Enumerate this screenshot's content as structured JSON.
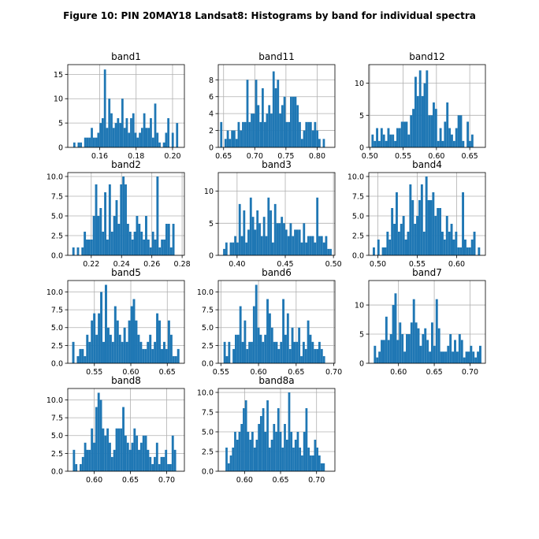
{
  "title": "Figure 10: PIN 20MAY18  Landsat8: Histograms by band for individual spectra",
  "bar_color": "#1f77b4",
  "chart_data": [
    {
      "type": "bar",
      "title": "band1",
      "grid": true,
      "xlim": [
        0.1425,
        0.2065
      ],
      "ylim": [
        0,
        17
      ],
      "xticks": [
        0.16,
        0.18,
        0.2
      ],
      "xtick_labels": [
        "0.16",
        "0.18",
        "0.20"
      ],
      "yticks": [
        0,
        5,
        10,
        15
      ],
      "ytick_labels": [
        "0",
        "5",
        "10",
        "15"
      ],
      "bin_start": 0.1455,
      "bin_width": 0.0012,
      "values": [
        1,
        0,
        1,
        1,
        0,
        2,
        2,
        2,
        4,
        2,
        2,
        3,
        5,
        6,
        16,
        4,
        10,
        7,
        4,
        5,
        6,
        5,
        10,
        4,
        6,
        3,
        6,
        7,
        3,
        2,
        3,
        4,
        7,
        4,
        4,
        6,
        2,
        9,
        3,
        1,
        0,
        1,
        3,
        6,
        0,
        3,
        0,
        5
      ]
    },
    {
      "type": "bar",
      "title": "band11",
      "grid": true,
      "xlim": [
        0.6415,
        0.8285
      ],
      "ylim": [
        0,
        9.8
      ],
      "xticks": [
        0.65,
        0.7,
        0.75,
        0.8
      ],
      "xtick_labels": [
        "0.65",
        "0.70",
        "0.75",
        "0.80"
      ],
      "yticks": [
        0,
        2,
        4,
        6,
        8
      ],
      "ytick_labels": [
        "0",
        "2",
        "4",
        "6",
        "8"
      ],
      "bin_start": 0.6445,
      "bin_width": 0.0035,
      "values": [
        3,
        0,
        1,
        2,
        1,
        2,
        2,
        1,
        3,
        2,
        3,
        3,
        8,
        3,
        4,
        4,
        8,
        5,
        3,
        7,
        3,
        4,
        5,
        4,
        9,
        7,
        8,
        4,
        5,
        6,
        3,
        3,
        6,
        6,
        6,
        5,
        3,
        1,
        2,
        3,
        3,
        3,
        2,
        3,
        2,
        1,
        0,
        1
      ]
    },
    {
      "type": "bar",
      "title": "band12",
      "grid": true,
      "xlim": [
        0.4985,
        0.6735
      ],
      "ylim": [
        0,
        12.9
      ],
      "xticks": [
        0.5,
        0.55,
        0.6,
        0.65
      ],
      "xtick_labels": [
        "0.50",
        "0.55",
        "0.60",
        "0.65"
      ],
      "yticks": [
        0,
        5,
        10
      ],
      "ytick_labels": [
        "0",
        "5",
        "10"
      ],
      "bin_start": 0.5025,
      "bin_width": 0.0034,
      "values": [
        2,
        1,
        3,
        1,
        3,
        2,
        1,
        3,
        2,
        2,
        1,
        3,
        3,
        4,
        4,
        4,
        2,
        5,
        6,
        11,
        8,
        12,
        8,
        10,
        12,
        5,
        5,
        7,
        6,
        1,
        3,
        1,
        4,
        7,
        3,
        2,
        1,
        3,
        5,
        5,
        1,
        0,
        4,
        1,
        2
      ]
    },
    {
      "type": "bar",
      "title": "band2",
      "grid": true,
      "xlim": [
        0.2045,
        0.2815
      ],
      "ylim": [
        0,
        10.5
      ],
      "xticks": [
        0.22,
        0.24,
        0.26,
        0.28
      ],
      "xtick_labels": [
        "0.22",
        "0.24",
        "0.26",
        "0.28"
      ],
      "yticks": [
        0,
        2.5,
        5,
        7.5,
        10
      ],
      "ytick_labels": [
        "0.0",
        "2.5",
        "5.0",
        "7.5",
        "10.0"
      ],
      "bin_start": 0.2075,
      "bin_width": 0.0015,
      "values": [
        1,
        0,
        1,
        0,
        1,
        3,
        2,
        2,
        2,
        5,
        9,
        5,
        6,
        3,
        8,
        2,
        9,
        3,
        5,
        7,
        4,
        9,
        10,
        9,
        4,
        3,
        2,
        3,
        5,
        4,
        3,
        2,
        5,
        2,
        1,
        3,
        2,
        10,
        1,
        2,
        2,
        4,
        4,
        1,
        4
      ]
    },
    {
      "type": "bar",
      "title": "band3",
      "grid": true,
      "xlim": [
        0.3805,
        0.5015
      ],
      "ylim": [
        0,
        12.9
      ],
      "xticks": [
        0.4,
        0.45,
        0.5
      ],
      "xtick_labels": [
        "0.40",
        "0.45",
        "0.50"
      ],
      "yticks": [
        0,
        5,
        10
      ],
      "ytick_labels": [
        "0",
        "5",
        "10"
      ],
      "bin_start": 0.3855,
      "bin_width": 0.0023,
      "values": [
        1,
        2,
        0,
        2,
        2,
        3,
        2,
        8,
        3,
        7,
        2,
        4,
        9,
        6,
        4,
        7,
        5,
        3,
        6,
        3,
        9,
        7,
        2,
        8,
        5,
        5,
        6,
        5,
        4,
        3,
        5,
        3,
        4,
        4,
        4,
        2,
        5,
        2,
        3,
        3,
        3,
        2,
        9,
        3,
        3,
        2,
        3,
        1,
        1
      ]
    },
    {
      "type": "bar",
      "title": "band4",
      "grid": true,
      "xlim": [
        0.4885,
        0.6365
      ],
      "ylim": [
        0,
        10.5
      ],
      "xticks": [
        0.5,
        0.55,
        0.6
      ],
      "xtick_labels": [
        "0.50",
        "0.55",
        "0.60"
      ],
      "yticks": [
        0,
        2.5,
        5,
        7.5,
        10
      ],
      "ytick_labels": [
        "0.0",
        "2.5",
        "5.0",
        "7.5",
        "10.0"
      ],
      "bin_start": 0.4935,
      "bin_width": 0.0029,
      "values": [
        1,
        0,
        2,
        0,
        1,
        1,
        3,
        2,
        6,
        4,
        8,
        3,
        4,
        5,
        2,
        3,
        9,
        7,
        4,
        5,
        7,
        9,
        3,
        10,
        7,
        7,
        8,
        5,
        6,
        6,
        3,
        2,
        5,
        3,
        4,
        2,
        3,
        1,
        1,
        8,
        2,
        1,
        1,
        2,
        3,
        0,
        1
      ]
    },
    {
      "type": "bar",
      "title": "band5",
      "grid": true,
      "xlim": [
        0.5135,
        0.6735
      ],
      "ylim": [
        0,
        11.6
      ],
      "xticks": [
        0.55,
        0.6,
        0.65
      ],
      "xtick_labels": [
        "0.55",
        "0.60",
        "0.65"
      ],
      "yticks": [
        0,
        2.5,
        5,
        7.5,
        10
      ],
      "ytick_labels": [
        "0.0",
        "2.5",
        "5.0",
        "7.5",
        "10.0"
      ],
      "bin_start": 0.5195,
      "bin_width": 0.0032,
      "values": [
        3,
        0,
        1,
        2,
        2,
        1,
        4,
        3,
        6,
        7,
        4,
        7,
        10,
        3,
        11,
        5,
        4,
        3,
        8,
        6,
        4,
        3,
        5,
        3,
        6,
        8,
        9,
        6,
        4,
        3,
        2,
        2,
        3,
        4,
        2,
        3,
        7,
        6,
        2,
        3,
        2,
        6,
        4,
        1,
        1,
        2
      ]
    },
    {
      "type": "bar",
      "title": "band6",
      "grid": true,
      "xlim": [
        0.5465,
        0.7015
      ],
      "ylim": [
        0,
        11.6
      ],
      "xticks": [
        0.55,
        0.6,
        0.65,
        0.7
      ],
      "xtick_labels": [
        "0.55",
        "0.60",
        "0.65",
        "0.70"
      ],
      "yticks": [
        0,
        2.5,
        5,
        7.5,
        10
      ],
      "ytick_labels": [
        "0.0",
        "2.5",
        "5.0",
        "7.5",
        "10.0"
      ],
      "bin_start": 0.5505,
      "bin_width": 0.003,
      "values": [
        0,
        3,
        1,
        3,
        0,
        2,
        4,
        4,
        8,
        3,
        6,
        2,
        3,
        3,
        8,
        11,
        5,
        4,
        3,
        4,
        9,
        7,
        5,
        3,
        3,
        2,
        3,
        9,
        4,
        7,
        2,
        5,
        3,
        3,
        5,
        1,
        3,
        2,
        6,
        4,
        3,
        2,
        2,
        3,
        2,
        1
      ]
    },
    {
      "type": "bar",
      "title": "band7",
      "grid": true,
      "xlim": [
        0.5585,
        0.7215
      ],
      "ylim": [
        0,
        14.2
      ],
      "xticks": [
        0.6,
        0.65,
        0.7
      ],
      "xtick_labels": [
        "0.60",
        "0.65",
        "0.70"
      ],
      "yticks": [
        0,
        5,
        10
      ],
      "ytick_labels": [
        "0",
        "5",
        "10"
      ],
      "bin_start": 0.5655,
      "bin_width": 0.0032,
      "values": [
        3,
        1,
        2,
        4,
        4,
        8,
        4,
        5,
        10,
        12,
        4,
        7,
        5,
        2,
        5,
        5,
        7,
        11,
        7,
        6,
        3,
        5,
        6,
        4,
        2,
        7,
        3,
        11,
        6,
        2,
        2,
        2,
        3,
        5,
        2,
        4,
        2,
        5,
        4,
        1,
        2,
        2,
        3,
        2,
        1,
        2,
        3
      ]
    },
    {
      "type": "bar",
      "title": "band8",
      "grid": true,
      "xlim": [
        0.5635,
        0.7245
      ],
      "ylim": [
        0,
        11.6
      ],
      "xticks": [
        0.6,
        0.65,
        0.7
      ],
      "xtick_labels": [
        "0.60",
        "0.65",
        "0.70"
      ],
      "yticks": [
        0,
        2.5,
        5,
        7.5,
        10
      ],
      "ytick_labels": [
        "0.0",
        "2.5",
        "5.0",
        "7.5",
        "10.0"
      ],
      "bin_start": 0.5705,
      "bin_width": 0.0031,
      "values": [
        3,
        1,
        0,
        1,
        2,
        4,
        3,
        3,
        6,
        4,
        9,
        11,
        10,
        6,
        5,
        6,
        4,
        2,
        3,
        6,
        6,
        6,
        9,
        5,
        4,
        3,
        4,
        6,
        5,
        3,
        4,
        5,
        5,
        3,
        2,
        1,
        2,
        4,
        1,
        2,
        2,
        3,
        1,
        1,
        5,
        3,
        0
      ]
    },
    {
      "type": "bar",
      "title": "band8a",
      "grid": true,
      "xlim": [
        0.5635,
        0.7255
      ],
      "ylim": [
        0,
        10.5
      ],
      "xticks": [
        0.6,
        0.65,
        0.7
      ],
      "xtick_labels": [
        "0.60",
        "0.65",
        "0.70"
      ],
      "yticks": [
        0,
        2.5,
        5,
        7.5,
        10
      ],
      "ytick_labels": [
        "0.0",
        "2.5",
        "5.0",
        "7.5",
        "10.0"
      ],
      "bin_start": 0.5735,
      "bin_width": 0.003,
      "values": [
        3,
        1,
        2,
        3,
        5,
        4,
        5,
        6,
        8,
        9,
        5,
        4,
        5,
        3,
        4,
        6,
        7,
        8,
        5,
        9,
        3,
        4,
        6,
        5,
        8,
        5,
        3,
        6,
        4,
        10,
        5,
        3,
        4,
        5,
        3,
        2,
        5,
        8,
        3,
        2,
        2,
        4,
        3,
        2,
        1,
        1
      ]
    }
  ]
}
